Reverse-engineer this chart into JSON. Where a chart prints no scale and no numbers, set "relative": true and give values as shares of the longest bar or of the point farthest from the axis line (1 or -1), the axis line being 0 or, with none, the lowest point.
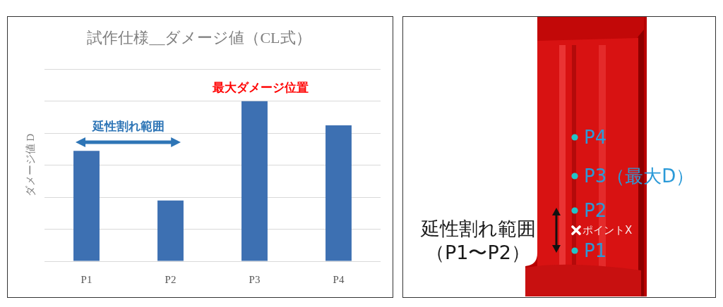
{
  "chart_data": [
    {
      "type": "bar",
      "title": "試作仕様__ダメージ値（CL式）",
      "ylabel": "ダメージ値 D",
      "categories": [
        "P1",
        "P2",
        "P3",
        "P4"
      ],
      "values": [
        0.69,
        0.38,
        1,
        0.85
      ],
      "color": "#3d70b2",
      "relative": true,
      "grid": "y",
      "annotations": [
        "最大ダメージ位置",
        "延性割れ範囲"
      ]
    },
    {
      "type": "other",
      "annotations": [
        "P4",
        "P3（最大D）",
        "P2",
        "ポイントX",
        "P1",
        "延性割れ範囲（P1〜P2）"
      ]
    }
  ]
}
